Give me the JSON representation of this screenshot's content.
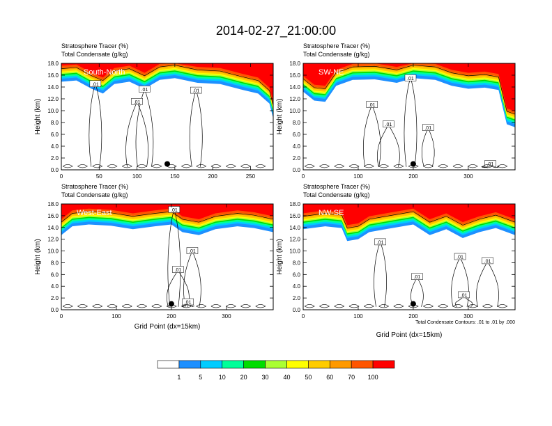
{
  "title": "2014-02-27_21:00:00",
  "colors": {
    "levels": [
      "#ffffff",
      "#1e90ff",
      "#00ccff",
      "#00ff99",
      "#00dd00",
      "#aaff33",
      "#ffff00",
      "#ffcc00",
      "#ff9900",
      "#ff5500",
      "#ff0000"
    ]
  },
  "colorbar": {
    "tick_labels": [
      "1",
      "5",
      "10",
      "20",
      "30",
      "40",
      "50",
      "60",
      "70",
      "100"
    ]
  },
  "chart_data": [
    {
      "type": "heatmap",
      "panel": "South-North",
      "title_line1": "Stratosphere Tracer   (%)",
      "title_line2": "Total Condensate   (g/kg)",
      "ylabel": "Height (km)",
      "xlabel": "",
      "xlim": [
        0,
        280
      ],
      "ylim": [
        0,
        18
      ],
      "xticks": [
        0,
        50,
        100,
        150,
        200,
        250
      ],
      "yticks": [
        "0.0",
        "2.0",
        "4.0",
        "6.0",
        "8.0",
        "10.0",
        "12.0",
        "14.0",
        "16.0",
        "18.0"
      ],
      "tracer_base_km": [
        [
          0,
          15.2
        ],
        [
          20,
          15.4
        ],
        [
          40,
          14.0
        ],
        [
          55,
          13.2
        ],
        [
          70,
          14.8
        ],
        [
          90,
          15.2
        ],
        [
          110,
          14.0
        ],
        [
          130,
          15.5
        ],
        [
          150,
          15.8
        ],
        [
          180,
          15.0
        ],
        [
          210,
          14.8
        ],
        [
          240,
          13.8
        ],
        [
          260,
          13.2
        ],
        [
          275,
          11.5
        ],
        [
          280,
          9.0
        ]
      ],
      "condensate_contours": [
        {
          "label": ".01",
          "x": 45,
          "y": 14.5
        },
        {
          "label": ".01",
          "x": 110,
          "y": 13.6
        },
        {
          "label": ".01",
          "x": 100,
          "y": 11.5
        },
        {
          "label": ".01",
          "x": 178,
          "y": 13.4
        }
      ],
      "marker": {
        "x": 140,
        "y": 1.0
      }
    },
    {
      "type": "heatmap",
      "panel": "SW-NE",
      "title_line1": "Stratosphere Tracer   (%)",
      "title_line2": "Total Condensate   (g/kg)",
      "ylabel": "Height (km)",
      "xlabel": "",
      "xlim": [
        0,
        385
      ],
      "ylim": [
        0,
        18
      ],
      "xticks": [
        0,
        100,
        200,
        300
      ],
      "yticks": [
        "0.0",
        "2.0",
        "4.0",
        "6.0",
        "8.0",
        "10.0",
        "12.0",
        "14.0",
        "16.0",
        "18.0"
      ],
      "tracer_base_km": [
        [
          0,
          13.5
        ],
        [
          20,
          12.0
        ],
        [
          40,
          11.8
        ],
        [
          60,
          14.5
        ],
        [
          90,
          15.5
        ],
        [
          130,
          15.6
        ],
        [
          170,
          15.0
        ],
        [
          200,
          15.8
        ],
        [
          240,
          15.5
        ],
        [
          270,
          14.5
        ],
        [
          300,
          14.0
        ],
        [
          330,
          14.2
        ],
        [
          355,
          13.8
        ],
        [
          370,
          8.0
        ],
        [
          385,
          7.5
        ]
      ],
      "condensate_contours": [
        {
          "label": ".01",
          "x": 195,
          "y": 15.5
        },
        {
          "label": ".01",
          "x": 125,
          "y": 11.0
        },
        {
          "label": ".01",
          "x": 155,
          "y": 7.7
        },
        {
          "label": ".01",
          "x": 227,
          "y": 7.1
        },
        {
          "label": ".01",
          "x": 340,
          "y": 1.0
        }
      ],
      "marker": {
        "x": 200,
        "y": 1.0
      }
    },
    {
      "type": "heatmap",
      "panel": "West-East",
      "title_line1": "Stratosphere Tracer   (%)",
      "title_line2": "Total Condensate   (g/kg)",
      "ylabel": "Height (km)",
      "xlabel": "Grid Point (dx=15km)",
      "xlim": [
        0,
        385
      ],
      "ylim": [
        0,
        18
      ],
      "xticks": [
        0,
        100,
        200,
        300
      ],
      "yticks": [
        "0.0",
        "2.0",
        "4.0",
        "6.0",
        "8.0",
        "10.0",
        "12.0",
        "14.0",
        "16.0",
        "18.0"
      ],
      "tracer_base_km": [
        [
          0,
          13.0
        ],
        [
          20,
          14.5
        ],
        [
          50,
          14.8
        ],
        [
          90,
          14.6
        ],
        [
          130,
          14.0
        ],
        [
          170,
          14.5
        ],
        [
          200,
          14.8
        ],
        [
          220,
          13.5
        ],
        [
          250,
          13.0
        ],
        [
          280,
          14.0
        ],
        [
          320,
          14.5
        ],
        [
          350,
          14.2
        ],
        [
          385,
          13.5
        ]
      ],
      "condensate_contours": [
        {
          "label": ".01",
          "x": 205,
          "y": 17.0
        },
        {
          "label": ".01",
          "x": 238,
          "y": 10.0
        },
        {
          "label": ".01",
          "x": 212,
          "y": 6.8
        },
        {
          "label": ".01",
          "x": 230,
          "y": 1.3
        }
      ],
      "marker": {
        "x": 200,
        "y": 1.0
      }
    },
    {
      "type": "heatmap",
      "panel": "NW-SE",
      "title_line1": "Stratosphere Tracer   (%)",
      "title_line2": "Total Condensate   (g/kg)",
      "ylabel": "Height (km)",
      "xlabel": "Grid Point (dx=15km)",
      "xlim": [
        0,
        385
      ],
      "ylim": [
        0,
        18
      ],
      "xticks": [
        0,
        100,
        200,
        300
      ],
      "yticks": [
        "0.0",
        "2.0",
        "4.0",
        "6.0",
        "8.0",
        "10.0",
        "12.0",
        "14.0",
        "16.0",
        "18.0"
      ],
      "tracer_base_km": [
        [
          0,
          14.0
        ],
        [
          40,
          14.5
        ],
        [
          70,
          14.2
        ],
        [
          80,
          12.0
        ],
        [
          100,
          12.3
        ],
        [
          120,
          13.5
        ],
        [
          150,
          14.0
        ],
        [
          200,
          14.8
        ],
        [
          230,
          13.0
        ],
        [
          260,
          14.0
        ],
        [
          290,
          12.5
        ],
        [
          320,
          13.5
        ],
        [
          350,
          14.2
        ],
        [
          385,
          13.0
        ]
      ],
      "condensate_contours": [
        {
          "label": ".01",
          "x": 140,
          "y": 11.5
        },
        {
          "label": ".01",
          "x": 285,
          "y": 9.0
        },
        {
          "label": ".01",
          "x": 335,
          "y": 8.3
        },
        {
          "label": ".01",
          "x": 207,
          "y": 5.6
        },
        {
          "label": ".01",
          "x": 292,
          "y": 2.5
        }
      ],
      "marker": {
        "x": 200,
        "y": 1.0
      },
      "footnote": "Total Condensate Contours: .01 to .01 by .000"
    }
  ]
}
